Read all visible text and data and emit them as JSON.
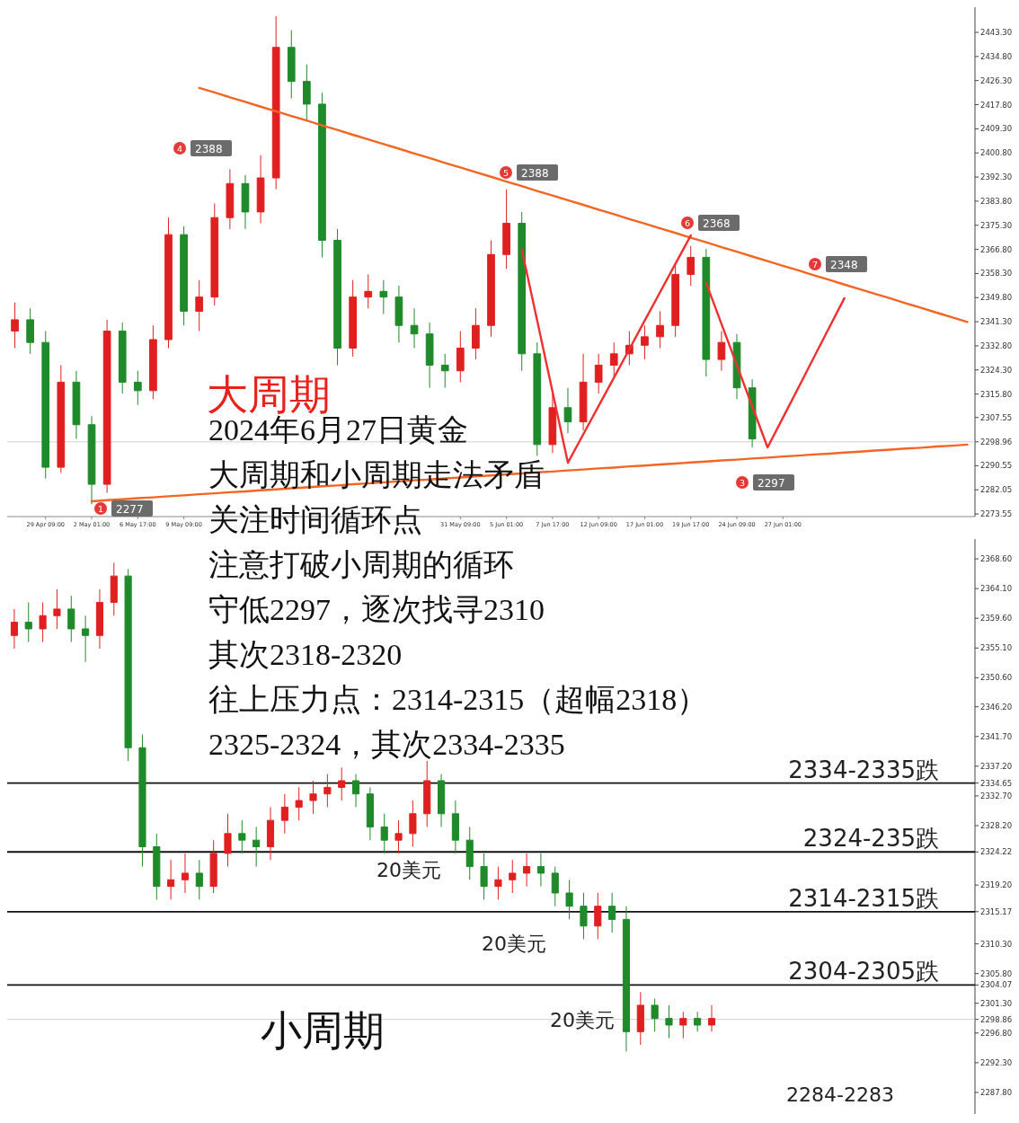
{
  "chart_data": [
    {
      "type": "candlestick",
      "title": "大周期",
      "categories": [
        null,
        null,
        "29 Apr 09:00",
        null,
        null,
        "2 May 01:00",
        null,
        null,
        "6 May 17:00",
        null,
        null,
        "9 May 09:00",
        null,
        null,
        null,
        null,
        null,
        null,
        null,
        null,
        null,
        null,
        null,
        null,
        null,
        null,
        null,
        null,
        null,
        "31 May 09:00",
        null,
        null,
        "5 Jun 01:00",
        null,
        null,
        "7 Jun 17:00",
        null,
        null,
        "12 Jun 09:00",
        null,
        null,
        "17 Jun 01:00",
        null,
        null,
        "19 Jun 17:00",
        null,
        null,
        "24 Jun 09:00",
        null,
        null,
        "27 Jun 01:00",
        null,
        null,
        null,
        null,
        null,
        null,
        null,
        null,
        null,
        null,
        null,
        null
      ],
      "ohlc": [
        [
          2338,
          2348,
          2332,
          2342
        ],
        [
          2342,
          2346,
          2330,
          2334
        ],
        [
          2334,
          2338,
          2286,
          2290
        ],
        [
          2290,
          2326,
          2288,
          2320
        ],
        [
          2320,
          2324,
          2300,
          2305
        ],
        [
          2305,
          2308,
          2277,
          2284
        ],
        [
          2284,
          2342,
          2281,
          2338
        ],
        [
          2338,
          2341,
          2316,
          2320
        ],
        [
          2320,
          2324,
          2312,
          2317
        ],
        [
          2317,
          2340,
          2314,
          2335
        ],
        [
          2335,
          2378,
          2332,
          2372
        ],
        [
          2372,
          2375,
          2340,
          2345
        ],
        [
          2345,
          2356,
          2338,
          2350
        ],
        [
          2350,
          2383,
          2347,
          2378
        ],
        [
          2378,
          2395,
          2374,
          2390
        ],
        [
          2390,
          2393,
          2374,
          2380
        ],
        [
          2380,
          2400,
          2376,
          2392
        ],
        [
          2392,
          2449,
          2388,
          2438
        ],
        [
          2438,
          2444,
          2420,
          2426
        ],
        [
          2426,
          2432,
          2412,
          2418
        ],
        [
          2418,
          2422,
          2364,
          2370
        ],
        [
          2370,
          2374,
          2326,
          2332
        ],
        [
          2332,
          2356,
          2329,
          2350
        ],
        [
          2350,
          2358,
          2346,
          2352
        ],
        [
          2352,
          2356,
          2344,
          2350
        ],
        [
          2350,
          2354,
          2334,
          2340
        ],
        [
          2340,
          2346,
          2332,
          2337
        ],
        [
          2337,
          2341,
          2318,
          2326
        ],
        [
          2326,
          2330,
          2318,
          2324
        ],
        [
          2324,
          2338,
          2320,
          2332
        ],
        [
          2332,
          2346,
          2328,
          2340
        ],
        [
          2340,
          2370,
          2336,
          2365
        ],
        [
          2365,
          2388,
          2360,
          2376
        ],
        [
          2376,
          2380,
          2324,
          2330
        ],
        [
          2330,
          2334,
          2294,
          2298
        ],
        [
          2298,
          2316,
          2295,
          2311
        ],
        [
          2311,
          2318,
          2302,
          2306
        ],
        [
          2306,
          2330,
          2303,
          2320
        ],
        [
          2320,
          2330,
          2316,
          2326
        ],
        [
          2326,
          2334,
          2322,
          2330
        ],
        [
          2330,
          2338,
          2326,
          2333
        ],
        [
          2333,
          2340,
          2328,
          2336
        ],
        [
          2336,
          2345,
          2332,
          2340
        ],
        [
          2340,
          2362,
          2336,
          2358
        ],
        [
          2358,
          2368,
          2354,
          2364
        ],
        [
          2364,
          2367,
          2322,
          2328
        ],
        [
          2328,
          2338,
          2324,
          2334
        ],
        [
          2334,
          2337,
          2314,
          2318
        ],
        [
          2318,
          2321,
          2297,
          2300
        ],
        null,
        null,
        null,
        null,
        null,
        null,
        null,
        null,
        null,
        null,
        null,
        null,
        null,
        null
      ],
      "series": [
        {
          "type": "line",
          "color": "#f26522",
          "values": [
            null,
            null,
            null,
            null,
            null,
            null,
            null,
            null,
            null,
            null,
            null,
            null,
            2423.7,
            2422.1,
            2420.4,
            2418.8,
            2417.1,
            2415.5,
            2413.8,
            2412.2,
            2410.5,
            2408.9,
            2407.2,
            2405.6,
            2403.9,
            2402.3,
            2400.6,
            2399.0,
            2397.3,
            2395.7,
            2394.0,
            2392.4,
            2390.7,
            2389.1,
            2387.4,
            2385.8,
            2384.1,
            2382.5,
            2380.8,
            2379.2,
            2377.5,
            2375.9,
            2374.2,
            2372.6,
            2370.9,
            2369.3,
            2367.6,
            2366.0,
            2364.3,
            2362.7,
            2361.0,
            2359.4,
            2357.7,
            2356.1,
            2354.4,
            2352.8,
            2351.1,
            2349.5,
            2347.8,
            2346.2,
            2344.5,
            2342.9,
            2341.2
          ]
        },
        {
          "type": "line",
          "color": "#f26522",
          "values": [
            null,
            null,
            null,
            null,
            null,
            2278.0,
            2278.4,
            2278.7,
            2279.1,
            2279.4,
            2279.8,
            2280.1,
            2280.5,
            2280.8,
            2281.2,
            2281.5,
            2281.9,
            2282.2,
            2282.6,
            2282.9,
            2283.3,
            2283.6,
            2284.0,
            2284.3,
            2284.7,
            2285.0,
            2285.4,
            2285.7,
            2286.1,
            2286.4,
            2286.8,
            2287.1,
            2287.5,
            2287.8,
            2288.2,
            2288.5,
            2288.9,
            2289.2,
            2289.6,
            2289.9,
            2290.3,
            2290.6,
            2291.0,
            2291.3,
            2291.7,
            2292.0,
            2292.4,
            2292.7,
            2293.1,
            2293.4,
            2293.8,
            2294.1,
            2294.5,
            2294.8,
            2295.2,
            2295.5,
            2295.9,
            2296.2,
            2296.6,
            2296.9,
            2297.3,
            2297.6,
            2298.0
          ]
        },
        {
          "type": "line",
          "color": "#f03030",
          "values": [
            null,
            null,
            null,
            null,
            null,
            null,
            null,
            null,
            null,
            null,
            null,
            null,
            null,
            null,
            null,
            null,
            null,
            null,
            null,
            null,
            null,
            null,
            null,
            null,
            null,
            null,
            null,
            null,
            null,
            null,
            null,
            null,
            null,
            2366.7,
            2341.7,
            2316.6,
            2291.6,
            2301.6,
            2311.6,
            2321.6,
            2331.6,
            2341.7,
            2351.7,
            2361.7,
            2371.7,
            null,
            null,
            null,
            null,
            null,
            null,
            null,
            null,
            null,
            null,
            null,
            null,
            null,
            null,
            null,
            null,
            null,
            null
          ]
        },
        {
          "type": "line",
          "color": "#f03030",
          "values": [
            null,
            null,
            null,
            null,
            null,
            null,
            null,
            null,
            null,
            null,
            null,
            null,
            null,
            null,
            null,
            null,
            null,
            null,
            null,
            null,
            null,
            null,
            null,
            null,
            null,
            null,
            null,
            null,
            null,
            null,
            null,
            null,
            null,
            null,
            null,
            null,
            null,
            null,
            null,
            null,
            null,
            null,
            null,
            null,
            null,
            2355,
            2340.5,
            2326,
            2311.5,
            2297,
            2307.5,
            2318.0,
            2328.6,
            2339.1,
            2349.6,
            null,
            null,
            null,
            null,
            null,
            null,
            null,
            null
          ]
        }
      ],
      "ylim": [
        2272.62,
        2452.17
      ],
      "yticks": [
        {
          "value": 2443.3,
          "label": "2443.30"
        },
        {
          "value": 2434.8,
          "label": "2434.80"
        },
        {
          "value": 2426.3,
          "label": "2426.30"
        },
        {
          "value": 2417.8,
          "label": "2417.80"
        },
        {
          "value": 2409.3,
          "label": "2409.30"
        },
        {
          "value": 2400.8,
          "label": "2400.80"
        },
        {
          "value": 2392.3,
          "label": "2392.30"
        },
        {
          "value": 2383.8,
          "label": "2383.80"
        },
        {
          "value": 2375.3,
          "label": "2375.30"
        },
        {
          "value": 2366.8,
          "label": "2366.80"
        },
        {
          "value": 2358.3,
          "label": "2358.30"
        },
        {
          "value": 2349.8,
          "label": "2349.80"
        },
        {
          "value": 2341.3,
          "label": "2341.30"
        },
        {
          "value": 2332.8,
          "label": "2332.80"
        },
        {
          "value": 2324.3,
          "label": "2324.30"
        },
        {
          "value": 2315.8,
          "label": "2315.80"
        },
        {
          "value": 2307.55,
          "label": "2307.55"
        },
        {
          "value": 2298.96,
          "label": "2298.96"
        },
        {
          "value": 2290.55,
          "label": "2290.55"
        },
        {
          "value": 2282.05,
          "label": "2282.05"
        },
        {
          "value": 2273.55,
          "label": "2273.55"
        }
      ],
      "ref_lines": [
        {
          "axis": "y",
          "value": 2298.96,
          "color": "#d0d0d0"
        }
      ],
      "annotations": [
        "1",
        "2277",
        "4",
        "2388",
        "5",
        "2388",
        "6",
        "2368",
        "7",
        "2348",
        "3",
        "2297",
        "2024年6月27日黄金",
        "大周期和小周期走法矛盾",
        "关注时间循环点",
        "注意打破小周期的循环",
        "守低2297，逐次找寻2310",
        "其次2318-2320",
        "往上压力点：2314-2315（超幅2318）",
        "2325-2324，其次2334-2335"
      ]
    },
    {
      "type": "candlestick",
      "title": "小周期",
      "categories": [
        null,
        null,
        null,
        null,
        null,
        null,
        null,
        null,
        null,
        null,
        null,
        null,
        null,
        null,
        null,
        null,
        null,
        null,
        null,
        null,
        null,
        null,
        null,
        null,
        null,
        null,
        null,
        null,
        null,
        null,
        null,
        null,
        null,
        null,
        null,
        null,
        null,
        null,
        null,
        null,
        null,
        null,
        null,
        null,
        null,
        null,
        null,
        null,
        null,
        null,
        null,
        null,
        null,
        null,
        null,
        null,
        null,
        null,
        null,
        null,
        null,
        null,
        null,
        null,
        null,
        null,
        null,
        null
      ],
      "ohlc": [
        [
          2357,
          2361,
          2355,
          2359
        ],
        [
          2359,
          2362,
          2356,
          2358
        ],
        [
          2358,
          2362,
          2356,
          2360
        ],
        [
          2360,
          2364,
          2358,
          2361
        ],
        [
          2361,
          2363,
          2356,
          2358
        ],
        [
          2358,
          2360,
          2353,
          2357
        ],
        [
          2357,
          2364,
          2355,
          2362
        ],
        [
          2362,
          2368,
          2360,
          2366
        ],
        [
          2366,
          2367,
          2338,
          2340
        ],
        [
          2340,
          2342,
          2322,
          2325
        ],
        [
          2325,
          2327,
          2317,
          2319
        ],
        [
          2319,
          2323,
          2317,
          2320
        ],
        [
          2320,
          2324,
          2318,
          2321
        ],
        [
          2321,
          2323,
          2317,
          2319
        ],
        [
          2319,
          2326,
          2318,
          2324
        ],
        [
          2324,
          2330,
          2322,
          2327
        ],
        [
          2327,
          2329,
          2324,
          2326
        ],
        [
          2326,
          2328,
          2322,
          2325
        ],
        [
          2325,
          2331,
          2323,
          2329
        ],
        [
          2329,
          2333,
          2327,
          2331
        ],
        [
          2331,
          2334,
          2329,
          2332
        ],
        [
          2332,
          2335,
          2330,
          2333
        ],
        [
          2333,
          2336,
          2331,
          2334
        ],
        [
          2334,
          2337,
          2332,
          2335
        ],
        [
          2335,
          2336,
          2331,
          2333
        ],
        [
          2333,
          2334,
          2326,
          2328
        ],
        [
          2328,
          2330,
          2324,
          2326
        ],
        [
          2326,
          2329,
          2324,
          2327
        ],
        [
          2327,
          2332,
          2325,
          2330
        ],
        [
          2330,
          2338,
          2328,
          2335
        ],
        [
          2335,
          2336,
          2328,
          2330
        ],
        [
          2330,
          2332,
          2324,
          2326
        ],
        [
          2326,
          2328,
          2320,
          2322
        ],
        [
          2322,
          2324,
          2317,
          2319
        ],
        [
          2319,
          2322,
          2317,
          2320
        ],
        [
          2320,
          2323,
          2318,
          2321
        ],
        [
          2321,
          2324,
          2319,
          2322
        ],
        [
          2322,
          2324,
          2319,
          2321
        ],
        [
          2321,
          2322,
          2316,
          2318
        ],
        [
          2318,
          2320,
          2314,
          2316
        ],
        [
          2316,
          2318,
          2311,
          2313
        ],
        [
          2313,
          2318,
          2311,
          2316
        ],
        [
          2316,
          2318,
          2312,
          2314
        ],
        [
          2314,
          2316,
          2294,
          2297
        ],
        [
          2297,
          2303,
          2295,
          2301
        ],
        [
          2301,
          2302,
          2297,
          2299
        ],
        [
          2299,
          2301,
          2296,
          2298
        ],
        [
          2298,
          2300,
          2296,
          2299
        ],
        [
          2299,
          2300,
          2297,
          2298
        ],
        [
          2298,
          2301,
          2297,
          2299
        ],
        null,
        null,
        null,
        null,
        null,
        null,
        null,
        null,
        null,
        null,
        null,
        null,
        null,
        null,
        null,
        null,
        null,
        null
      ],
      "ylim": [
        2284.53,
        2371.6
      ],
      "tick_labels": "y",
      "yticks": [
        {
          "value": 2368.6,
          "label": "2368.60"
        },
        {
          "value": 2364.1,
          "label": "2364.10"
        },
        {
          "value": 2359.6,
          "label": "2359.60"
        },
        {
          "value": 2355.1,
          "label": "2355.10"
        },
        {
          "value": 2350.6,
          "label": "2350.60"
        },
        {
          "value": 2346.2,
          "label": "2346.20"
        },
        {
          "value": 2341.7,
          "label": "2341.70"
        },
        {
          "value": 2337.2,
          "label": "2337.20"
        },
        {
          "value": 2334.65,
          "label": "2334.65"
        },
        {
          "value": 2332.7,
          "label": "2332.70"
        },
        {
          "value": 2328.2,
          "label": "2328.20"
        },
        {
          "value": 2324.22,
          "label": "2324.22"
        },
        {
          "value": 2319.2,
          "label": "2319.20"
        },
        {
          "value": 2315.17,
          "label": "2315.17"
        },
        {
          "value": 2310.3,
          "label": "2310.30"
        },
        {
          "value": 2305.8,
          "label": "2305.80"
        },
        {
          "value": 2304.07,
          "label": "2304.07"
        },
        {
          "value": 2301.3,
          "label": "2301.30"
        },
        {
          "value": 2298.86,
          "label": "2298.86"
        },
        {
          "value": 2296.8,
          "label": "2296.80"
        },
        {
          "value": 2292.3,
          "label": "2292.30"
        },
        {
          "value": 2287.8,
          "label": "2287.80"
        }
      ],
      "ref_lines": [
        {
          "axis": "y",
          "value": 2334.65,
          "label": "2334-2335跌",
          "color": "#111111"
        },
        {
          "axis": "y",
          "value": 2324.22,
          "label": "2324-235跌",
          "color": "#111111"
        },
        {
          "axis": "y",
          "value": 2315.17,
          "label": "2314-2315跌",
          "color": "#111111"
        },
        {
          "axis": "y",
          "value": 2304.07,
          "label": "2304-2305跌",
          "color": "#111111"
        },
        {
          "axis": "y",
          "value": 2298.86,
          "color": "#d0d0d0"
        }
      ],
      "annotations": [
        "20美元",
        "20美元",
        "20美元",
        "2284-2283"
      ]
    }
  ]
}
